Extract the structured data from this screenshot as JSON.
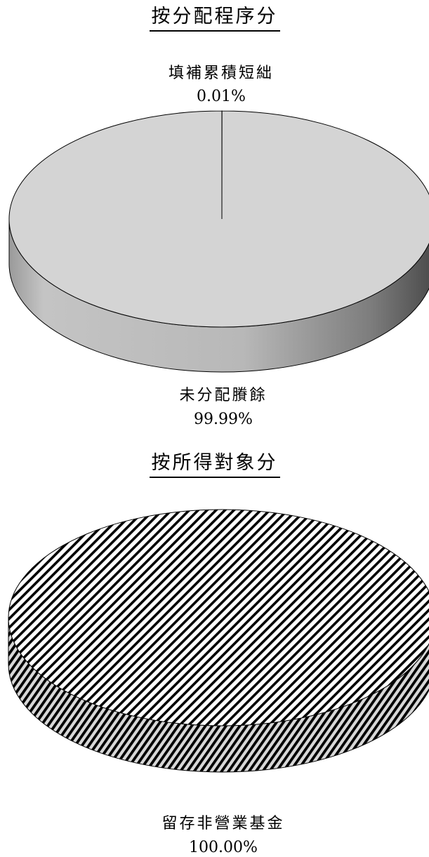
{
  "chart_data": [
    {
      "type": "pie",
      "title": "按分配程序分",
      "slices": [
        {
          "name": "填補累積短絀",
          "value": 0.01,
          "percent_label": "0.01%"
        },
        {
          "name": "未分配賸餘",
          "value": 99.99,
          "percent_label": "99.99%"
        }
      ],
      "style": "3d",
      "colors": {
        "top": "#d4d4d4",
        "side_light": "#cfcfcf",
        "side_dark": "#595959",
        "outline": "#000000"
      }
    },
    {
      "type": "pie",
      "title": "按所得對象分",
      "slices": [
        {
          "name": "留存非營業基金",
          "value": 100.0,
          "percent_label": "100.00%"
        }
      ],
      "style": "3d",
      "fill_pattern": "diagonal-hatch",
      "colors": {
        "top": "#ffffff",
        "hatch": "#000000",
        "outline": "#000000"
      }
    }
  ]
}
